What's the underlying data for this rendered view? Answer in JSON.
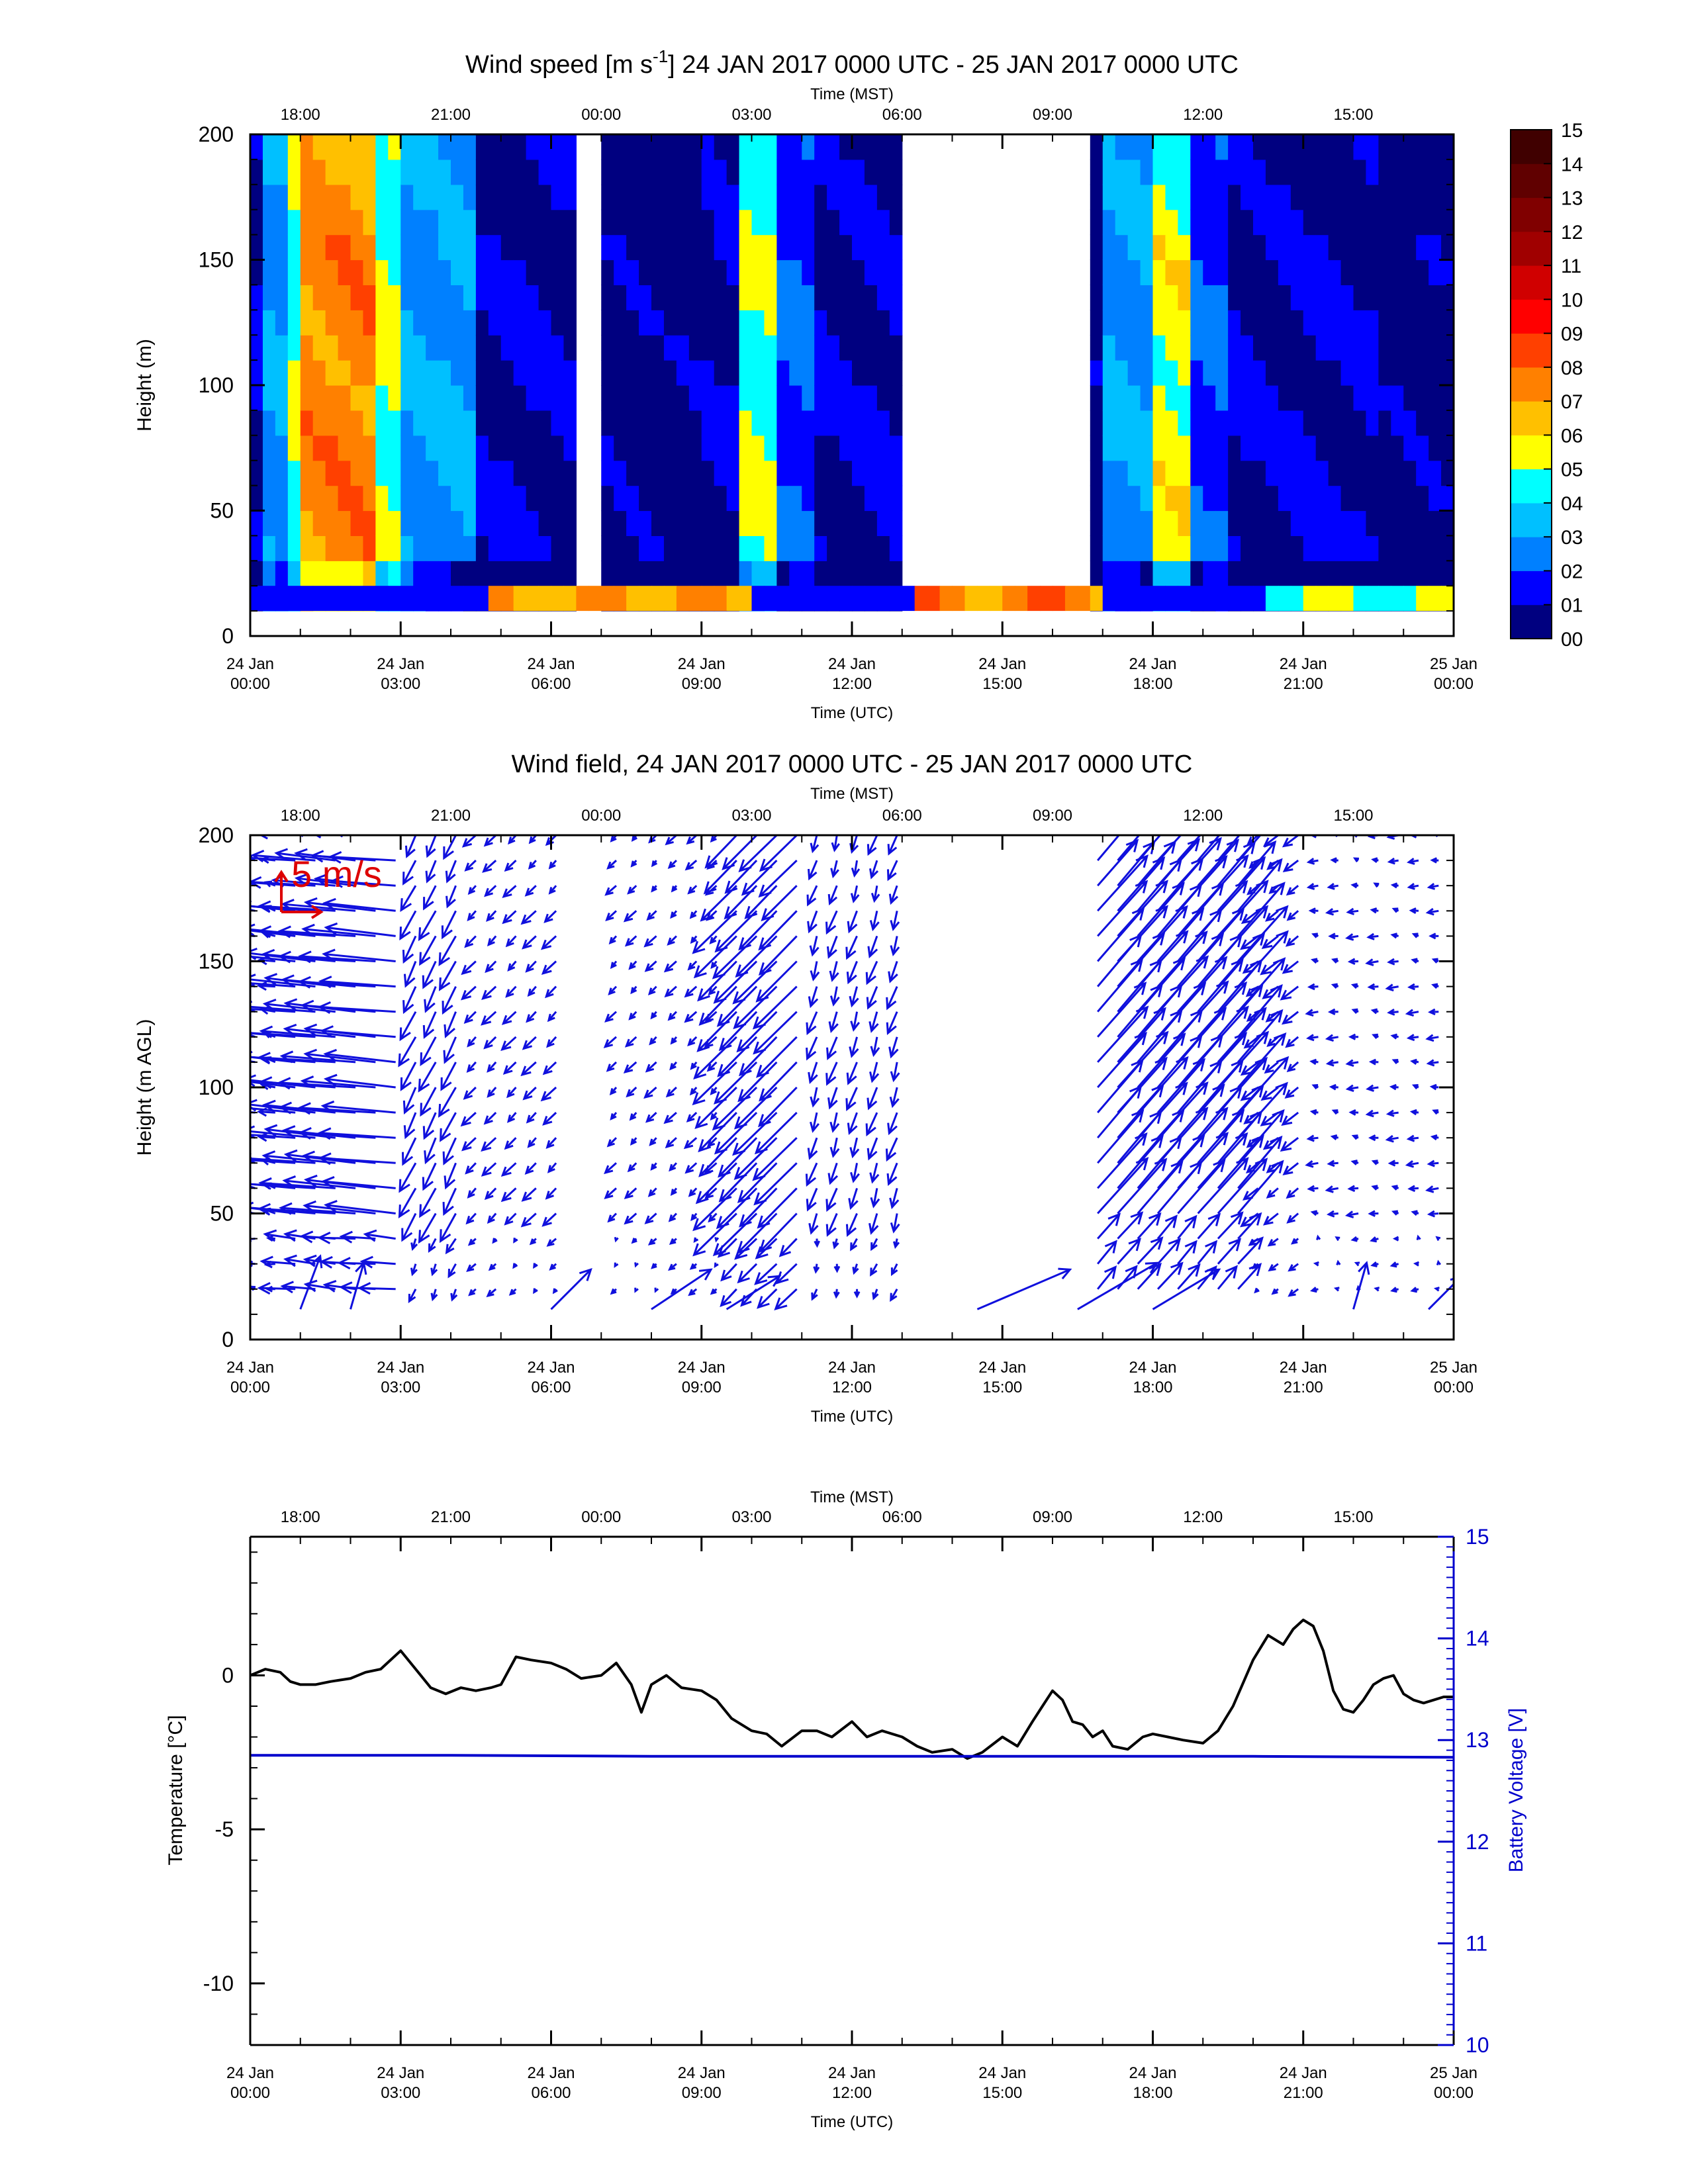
{
  "chart_data": [
    {
      "type": "heatmap",
      "title_pre": "Wind speed [m s",
      "title_sup": "-1",
      "title_post": "] 24 JAN 2017 0000 UTC - 25 JAN 2017 0000 UTC",
      "top_axis_label": "Time (MST)",
      "top_ticks": [
        "18:00",
        "21:00",
        "00:00",
        "03:00",
        "06:00",
        "09:00",
        "12:00",
        "15:00"
      ],
      "xlabel": "Time (UTC)",
      "x_ticks": [
        [
          "24 Jan",
          "00:00"
        ],
        [
          "24 Jan",
          "03:00"
        ],
        [
          "24 Jan",
          "06:00"
        ],
        [
          "24 Jan",
          "09:00"
        ],
        [
          "24 Jan",
          "12:00"
        ],
        [
          "24 Jan",
          "15:00"
        ],
        [
          "24 Jan",
          "18:00"
        ],
        [
          "24 Jan",
          "21:00"
        ],
        [
          "25 Jan",
          "00:00"
        ]
      ],
      "ylabel": "Height (m)",
      "yticks": [
        0,
        50,
        100,
        150,
        200
      ],
      "xlim_hours": [
        0,
        24
      ],
      "ylim": [
        0,
        200
      ],
      "colorbar": {
        "labels": [
          "00",
          "01",
          "02",
          "03",
          "04",
          "05",
          "06",
          "07",
          "08",
          "09",
          "10",
          "11",
          "12",
          "13",
          "14",
          "15"
        ],
        "colors": [
          "#000080",
          "#0000ff",
          "#0080ff",
          "#00c0ff",
          "#00ffff",
          "#ffff00",
          "#ffc000",
          "#ff8000",
          "#ff4000",
          "#ff0000",
          "#d00000",
          "#a00000",
          "#800000",
          "#600000",
          "#400000"
        ]
      },
      "speed_by_period": [
        {
          "start_h": 0.0,
          "end_h": 0.3,
          "speed": 1
        },
        {
          "start_h": 0.3,
          "end_h": 0.8,
          "speed": 3
        },
        {
          "start_h": 0.8,
          "end_h": 1.1,
          "speed": 5
        },
        {
          "start_h": 1.1,
          "end_h": 2.6,
          "speed": 7.5
        },
        {
          "start_h": 2.6,
          "end_h": 2.9,
          "speed": 5
        },
        {
          "start_h": 2.9,
          "end_h": 4.5,
          "speed": 3
        },
        {
          "start_h": 4.5,
          "end_h": 6.5,
          "speed": 1
        },
        {
          "start_h": 6.5,
          "end_h": 7.0,
          "speed": null
        },
        {
          "start_h": 7.0,
          "end_h": 9.0,
          "speed": 0.5
        },
        {
          "start_h": 9.0,
          "end_h": 9.8,
          "speed": 1
        },
        {
          "start_h": 9.8,
          "end_h": 10.4,
          "speed": 5
        },
        {
          "start_h": 10.4,
          "end_h": 11.3,
          "speed": 2
        },
        {
          "start_h": 11.3,
          "end_h": 13.0,
          "speed": 1
        },
        {
          "start_h": 13.0,
          "end_h": 16.7,
          "speed": null
        },
        {
          "start_h": 16.7,
          "end_h": 17.1,
          "speed": 0.5
        },
        {
          "start_h": 17.1,
          "end_h": 17.9,
          "speed": 3
        },
        {
          "start_h": 17.9,
          "end_h": 18.7,
          "speed": 5.5
        },
        {
          "start_h": 18.7,
          "end_h": 19.5,
          "speed": 2
        },
        {
          "start_h": 19.5,
          "end_h": 22.5,
          "speed": 1
        },
        {
          "start_h": 22.5,
          "end_h": 24.0,
          "speed": 0.5
        }
      ]
    },
    {
      "type": "quiver",
      "title": "Wind field, 24 JAN 2017 0000 UTC - 25 JAN 2017 0000 UTC",
      "top_axis_label": "Time (MST)",
      "top_ticks": [
        "18:00",
        "21:00",
        "00:00",
        "03:00",
        "06:00",
        "09:00",
        "12:00",
        "15:00"
      ],
      "xlabel": "Time (UTC)",
      "x_ticks": [
        [
          "24 Jan",
          "00:00"
        ],
        [
          "24 Jan",
          "03:00"
        ],
        [
          "24 Jan",
          "06:00"
        ],
        [
          "24 Jan",
          "09:00"
        ],
        [
          "24 Jan",
          "12:00"
        ],
        [
          "24 Jan",
          "15:00"
        ],
        [
          "24 Jan",
          "18:00"
        ],
        [
          "24 Jan",
          "21:00"
        ],
        [
          "25 Jan",
          "00:00"
        ]
      ],
      "ylabel": "Height (m AGL)",
      "yticks": [
        0,
        50,
        100,
        150,
        200
      ],
      "xlim_hours": [
        0,
        24
      ],
      "ylim": [
        0,
        200
      ],
      "reference_label": "5 m/s",
      "reference_speed": 5,
      "vector_color": "#1010dd",
      "reference_color": "#dd0000",
      "wind_by_period": [
        {
          "start_h": 0.0,
          "end_h": 0.8,
          "u": -1.0,
          "v": 0.2
        },
        {
          "start_h": 0.8,
          "end_h": 3.3,
          "u": -5.5,
          "v": 0.5
        },
        {
          "start_h": 3.3,
          "end_h": 4.3,
          "u": -1.0,
          "v": -2.0
        },
        {
          "start_h": 4.3,
          "end_h": 6.5,
          "u": -0.8,
          "v": -0.8
        },
        {
          "start_h": 6.5,
          "end_h": 7.0,
          "u": null,
          "v": null
        },
        {
          "start_h": 7.0,
          "end_h": 9.5,
          "u": -0.6,
          "v": -0.6
        },
        {
          "start_h": 9.5,
          "end_h": 11.3,
          "u": -3.0,
          "v": -3.0
        },
        {
          "start_h": 11.3,
          "end_h": 13.0,
          "u": -0.5,
          "v": -1.5
        },
        {
          "start_h": 13.0,
          "end_h": 16.6,
          "u": null,
          "v": null
        },
        {
          "start_h": 16.6,
          "end_h": 19.8,
          "u": 3.5,
          "v": 4.0
        },
        {
          "start_h": 19.8,
          "end_h": 21.0,
          "u": -1.0,
          "v": -0.8
        },
        {
          "start_h": 21.0,
          "end_h": 24.0,
          "u": -0.6,
          "v": 0.0
        }
      ],
      "near_surface_vectors": [
        {
          "hour": 1.0,
          "u": 1.5,
          "v": 4.0
        },
        {
          "hour": 2.0,
          "u": 1.0,
          "v": 3.5
        },
        {
          "hour": 6.0,
          "u": 3.0,
          "v": 3.0
        },
        {
          "hour": 8.0,
          "u": 4.5,
          "v": 3.0
        },
        {
          "hour": 9.5,
          "u": 4.0,
          "v": 2.5
        },
        {
          "hour": 14.5,
          "u": 7.0,
          "v": 3.0
        },
        {
          "hour": 16.5,
          "u": 6.0,
          "v": 3.5
        },
        {
          "hour": 18.0,
          "u": 5.0,
          "v": 3.0
        },
        {
          "hour": 22.0,
          "u": 1.0,
          "v": 3.5
        },
        {
          "hour": 23.5,
          "u": 2.5,
          "v": 2.5
        }
      ]
    },
    {
      "type": "line",
      "top_axis_label": "Time (MST)",
      "top_ticks": [
        "18:00",
        "21:00",
        "00:00",
        "03:00",
        "06:00",
        "09:00",
        "12:00",
        "15:00"
      ],
      "xlabel": "Time (UTC)",
      "x_ticks": [
        [
          "24 Jan",
          "00:00"
        ],
        [
          "24 Jan",
          "03:00"
        ],
        [
          "24 Jan",
          "06:00"
        ],
        [
          "24 Jan",
          "09:00"
        ],
        [
          "24 Jan",
          "12:00"
        ],
        [
          "24 Jan",
          "15:00"
        ],
        [
          "24 Jan",
          "18:00"
        ],
        [
          "24 Jan",
          "21:00"
        ],
        [
          "25 Jan",
          "00:00"
        ]
      ],
      "ylabel": "Temperature [°C]",
      "y2label": "Battery Voltage [V]",
      "ylim": [
        -12,
        4.5
      ],
      "yticks": [
        0,
        -5,
        -10
      ],
      "y2lim": [
        10,
        15
      ],
      "y2ticks": [
        10,
        11,
        12,
        13,
        14,
        15
      ],
      "xlim_hours": [
        0,
        24
      ],
      "series": [
        {
          "color": "#000000",
          "hours": [
            0.0,
            0.3,
            0.6,
            0.8,
            1.0,
            1.3,
            1.6,
            2.0,
            2.3,
            2.6,
            3.0,
            3.3,
            3.6,
            3.9,
            4.2,
            4.5,
            4.8,
            5.0,
            5.3,
            5.6,
            6.0,
            6.3,
            6.6,
            7.0,
            7.3,
            7.6,
            7.8,
            8.0,
            8.3,
            8.6,
            9.0,
            9.3,
            9.6,
            10.0,
            10.3,
            10.6,
            11.0,
            11.3,
            11.6,
            12.0,
            12.3,
            12.6,
            13.0,
            13.3,
            13.6,
            14.0,
            14.3,
            14.6,
            15.0,
            15.3,
            15.6,
            15.8,
            16.0,
            16.2,
            16.4,
            16.6,
            16.8,
            17.0,
            17.2,
            17.5,
            17.8,
            18.0,
            18.3,
            18.6,
            19.0,
            19.3,
            19.6,
            20.0,
            20.3,
            20.6,
            20.8,
            21.0,
            21.2,
            21.4,
            21.6,
            21.8,
            22.0,
            22.2,
            22.4,
            22.6,
            22.8,
            23.0,
            23.2,
            23.4,
            23.6,
            23.8,
            24.0
          ],
          "values": [
            0.0,
            0.2,
            0.1,
            -0.2,
            -0.3,
            -0.3,
            -0.2,
            -0.1,
            0.1,
            0.2,
            0.8,
            0.2,
            -0.4,
            -0.6,
            -0.4,
            -0.5,
            -0.4,
            -0.3,
            0.6,
            0.5,
            0.4,
            0.2,
            -0.1,
            0.0,
            0.4,
            -0.3,
            -1.2,
            -0.3,
            0.0,
            -0.4,
            -0.5,
            -0.8,
            -1.4,
            -1.8,
            -1.9,
            -2.3,
            -1.8,
            -1.8,
            -2.0,
            -1.5,
            -2.0,
            -1.8,
            -2.0,
            -2.3,
            -2.5,
            -2.4,
            -2.7,
            -2.5,
            -2.0,
            -2.3,
            -1.5,
            -1.0,
            -0.5,
            -0.8,
            -1.5,
            -1.6,
            -2.0,
            -1.8,
            -2.3,
            -2.4,
            -2.0,
            -1.9,
            -2.0,
            -2.1,
            -2.2,
            -1.8,
            -1.0,
            0.5,
            1.3,
            1.0,
            1.5,
            1.8,
            1.6,
            0.8,
            -0.5,
            -1.1,
            -1.2,
            -0.8,
            -0.3,
            -0.1,
            0.0,
            -0.6,
            -0.8,
            -0.9,
            -0.8,
            -0.7,
            -0.7
          ]
        },
        {
          "color": "#0000cc",
          "axis": "right",
          "hours": [
            0.0,
            4.0,
            8.0,
            12.0,
            16.0,
            20.0,
            24.0
          ],
          "values": [
            12.85,
            12.85,
            12.84,
            12.84,
            12.84,
            12.84,
            12.83
          ]
        }
      ]
    }
  ]
}
